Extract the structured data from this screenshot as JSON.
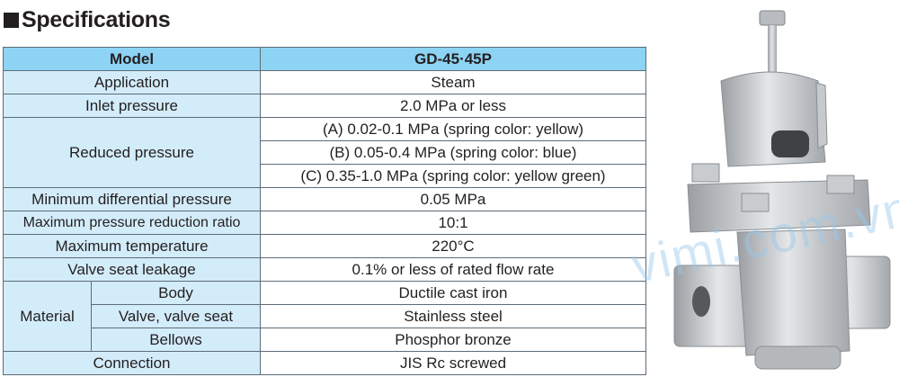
{
  "title": "Specifications",
  "table": {
    "header": {
      "label": "Model",
      "value": "GD-45·45P"
    },
    "application": {
      "label": "Application",
      "value": "Steam"
    },
    "inlet": {
      "label": "Inlet pressure",
      "value": "2.0 MPa or less"
    },
    "reduced": {
      "label": "Reduced pressure",
      "values": [
        "(A) 0.02-0.1 MPa (spring color: yellow)",
        "(B) 0.05-0.4 MPa (spring color: blue)",
        "(C) 0.35-1.0 MPa (spring color: yellow green)"
      ]
    },
    "min_diff": {
      "label": "Minimum differential pressure",
      "value": "0.05 MPa"
    },
    "max_ratio": {
      "label": "Maximum pressure reduction ratio",
      "value": "10:1"
    },
    "max_temp": {
      "label": "Maximum temperature",
      "value": "220°C"
    },
    "leakage": {
      "label": "Valve seat leakage",
      "value": "0.1% or less of rated flow rate"
    },
    "material": {
      "label": "Material",
      "rows": [
        {
          "label": "Body",
          "value": "Ductile cast iron"
        },
        {
          "label": "Valve, valve seat",
          "value": "Stainless steel"
        },
        {
          "label": "Bellows",
          "value": "Phosphor bronze"
        }
      ]
    },
    "connection": {
      "label": "Connection",
      "value": "JIS Rc screwed"
    }
  },
  "watermark": "vimi.com.vn",
  "colors": {
    "header": "#8dd3f4",
    "label_cell": "#d3ecfa",
    "border": "#5d6c78"
  }
}
